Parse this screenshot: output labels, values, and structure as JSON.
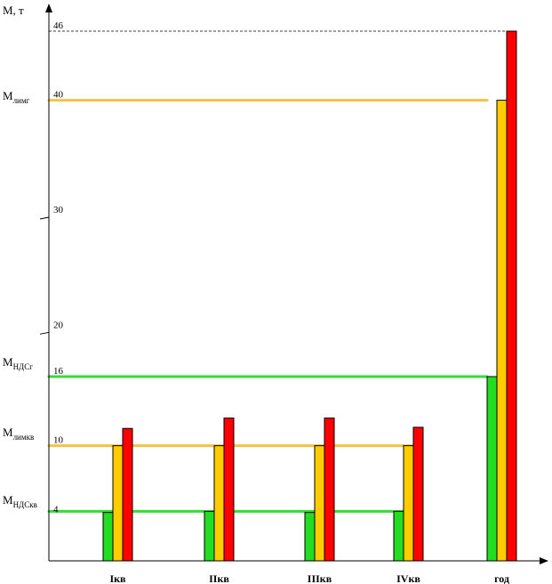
{
  "chart_data": {
    "type": "bar",
    "ylabel": "М, т",
    "ylim": [
      0,
      46
    ],
    "categories": [
      "Iкв",
      "IIкв",
      "IIIкв",
      "IVкв",
      "год"
    ],
    "y_ticks": [
      "46",
      "40",
      "30",
      "20",
      "16",
      "10",
      "4"
    ],
    "y_tick_values": [
      46,
      40,
      30,
      20,
      16,
      10,
      4
    ],
    "series": [
      {
        "values": [
          4.2,
          4.3,
          4.2,
          4.3,
          16
        ],
        "color": "#22dd22"
      },
      {
        "values": [
          10,
          10,
          10,
          10,
          40
        ],
        "color": "#ffcc00"
      },
      {
        "values": [
          11.5,
          12.4,
          12.4,
          11.6,
          46
        ],
        "color": "#ff0000"
      }
    ],
    "reference_lines": [
      {
        "main": "M",
        "sub": "лимг",
        "value": 40,
        "color": "#f5c242",
        "extent": "year"
      },
      {
        "main": "M",
        "sub": "НДСг",
        "value": 16,
        "color": "#33dd33",
        "extent": "year"
      },
      {
        "main": "M",
        "sub": "лимкв",
        "value": 10,
        "color": "#f5c242",
        "extent": "quarters"
      },
      {
        "main": "M",
        "sub": "НДСкв",
        "value": 4.3,
        "color": "#33dd33",
        "extent": "quarters"
      }
    ],
    "max_line": {
      "value": 46,
      "style": "dashed"
    },
    "legend": "none",
    "grid": false
  }
}
